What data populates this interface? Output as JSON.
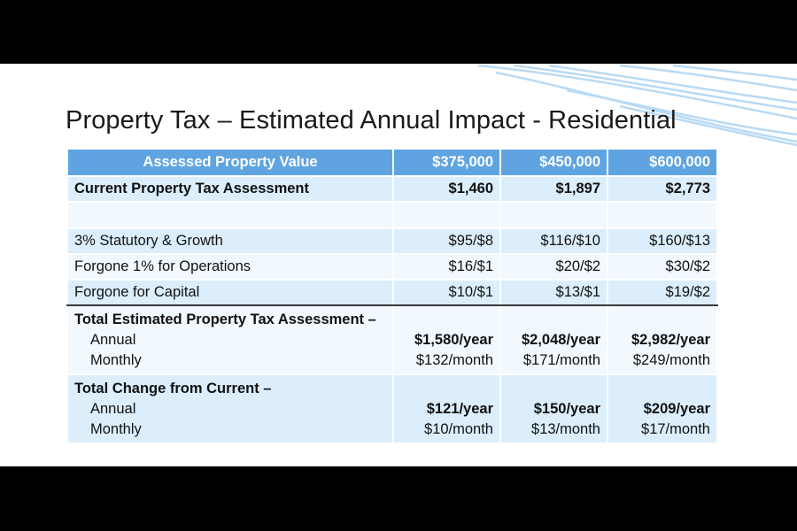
{
  "title": "Property Tax – Estimated Annual Impact - Residential",
  "colors": {
    "header": "#5fa4e0",
    "row_shade": "#dceefc",
    "row_light": "#f1f8fe",
    "wave": "#b9daf4"
  },
  "table": {
    "header": {
      "label": "Assessed Property Value",
      "values": [
        "$375,000",
        "$450,000",
        "$600,000"
      ]
    },
    "current": {
      "label": "Current Property Tax Assessment",
      "values": [
        "$1,460",
        "$1,897",
        "$2,773"
      ]
    },
    "statutory": {
      "label": "3% Statutory & Growth",
      "values": [
        "$95/$8",
        "$116/$10",
        "$160/$13"
      ]
    },
    "operations": {
      "label": "Forgone 1% for Operations",
      "values": [
        "$16/$1",
        "$20/$2",
        "$30/$2"
      ]
    },
    "capital": {
      "label": "Forgone for Capital",
      "values": [
        "$10/$1",
        "$13/$1",
        "$19/$2"
      ]
    },
    "total": {
      "label": "Total Estimated Property Tax Assessment –",
      "annual_label": "Annual",
      "monthly_label": "Monthly",
      "annual": [
        "$1,580/year",
        "$2,048/year",
        "$2,982/year"
      ],
      "monthly": [
        "$132/month",
        "$171/month",
        "$249/month"
      ]
    },
    "change": {
      "label": "Total Change from Current –",
      "annual_label": "Annual",
      "monthly_label": "Monthly",
      "annual": [
        "$121/year",
        "$150/year",
        "$209/year"
      ],
      "monthly": [
        "$10/month",
        "$13/month",
        "$17/month"
      ]
    }
  }
}
